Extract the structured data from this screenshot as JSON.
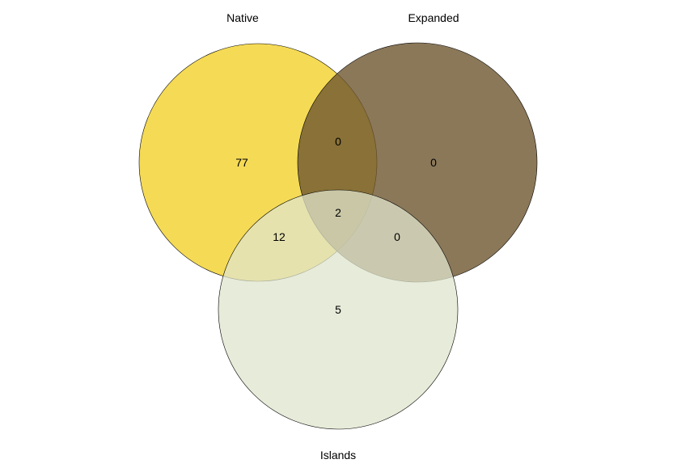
{
  "sets": [
    {
      "key": "native",
      "label": "Native",
      "color": "#f2d12c",
      "opacity": 0.8
    },
    {
      "key": "expanded",
      "label": "Expanded",
      "color": "#6e5630",
      "opacity": 0.8
    },
    {
      "key": "islands",
      "label": "Islands",
      "color": "#dfe4cc",
      "opacity": 0.75
    }
  ],
  "regions": {
    "native_only": "77",
    "expanded_only": "0",
    "islands_only": "5",
    "native_expanded": "0",
    "native_islands": "12",
    "expanded_islands": "0",
    "all_three": "2"
  }
}
